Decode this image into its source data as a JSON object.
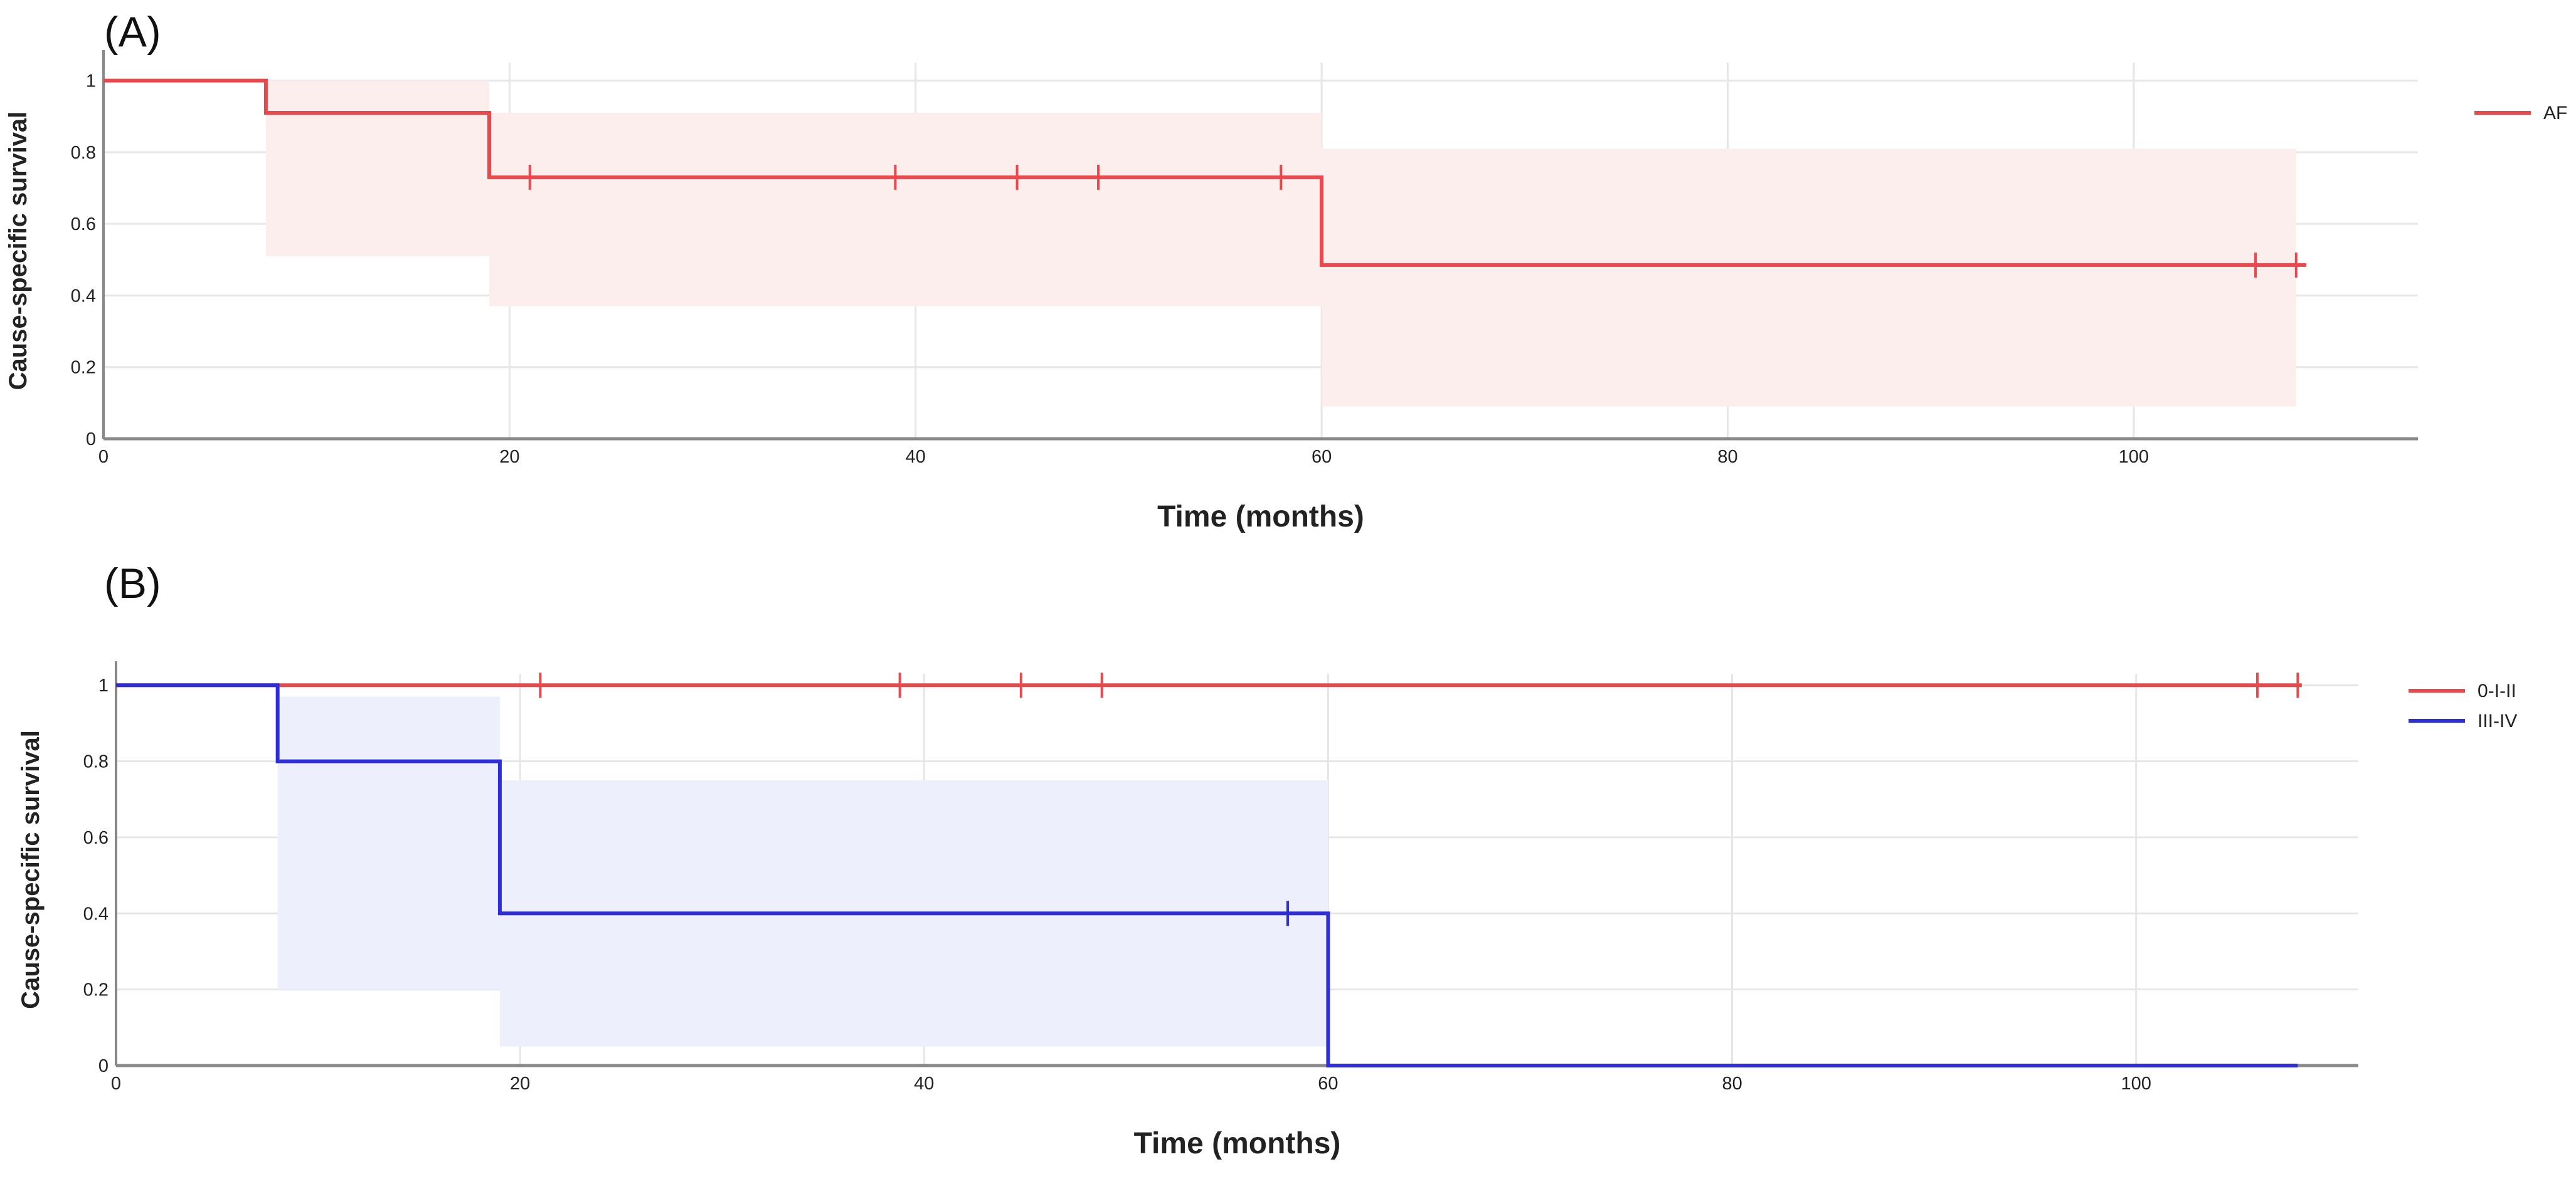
{
  "figure": {
    "panels": [
      {
        "label": "(A)"
      },
      {
        "label": "(B)"
      }
    ]
  },
  "chart_data": [
    {
      "type": "line",
      "subtype": "kaplan-meier",
      "panel": "(A)",
      "xlabel": "Time (months)",
      "ylabel": "Cause-specific survival",
      "xlim": [
        0,
        114
      ],
      "ylim": [
        0,
        1.05
      ],
      "xticks": [
        0,
        20,
        40,
        60,
        80,
        100
      ],
      "yticks": [
        0,
        0.2,
        0.4,
        0.6,
        0.8,
        1
      ],
      "yticklabels": [
        "0",
        "0.2",
        "0.4",
        "0.6",
        "0.8",
        "1"
      ],
      "grid": true,
      "legend_position": "top-right",
      "series": [
        {
          "name": "AF",
          "color": "#e8494d",
          "ci_color": "#fdeeee",
          "steps": [
            {
              "x": 0,
              "y": 1.0
            },
            {
              "x": 8,
              "y": 0.91
            },
            {
              "x": 19,
              "y": 0.73
            },
            {
              "x": 60,
              "y": 0.485
            }
          ],
          "end_x": 108.5,
          "censored": [
            {
              "x": 21,
              "y": 0.73
            },
            {
              "x": 39,
              "y": 0.73
            },
            {
              "x": 45,
              "y": 0.73
            },
            {
              "x": 49,
              "y": 0.73
            },
            {
              "x": 58,
              "y": 0.73
            },
            {
              "x": 106,
              "y": 0.485
            },
            {
              "x": 108,
              "y": 0.485
            }
          ],
          "ci": [
            {
              "x0": 8,
              "x1": 19,
              "lo": 0.51,
              "hi": 1.0
            },
            {
              "x0": 19,
              "x1": 60,
              "lo": 0.37,
              "hi": 0.91
            },
            {
              "x0": 60,
              "x1": 108,
              "lo": 0.09,
              "hi": 0.81
            }
          ]
        }
      ]
    },
    {
      "type": "line",
      "subtype": "kaplan-meier",
      "panel": "(B)",
      "xlabel": "Time (months)",
      "ylabel": "Cause-specific survival",
      "xlim": [
        0,
        111
      ],
      "ylim": [
        0,
        1.03
      ],
      "xticks": [
        0,
        20,
        40,
        60,
        80,
        100
      ],
      "yticks": [
        0,
        0.2,
        0.4,
        0.6,
        0.8,
        1
      ],
      "yticklabels": [
        "0",
        "0.2",
        "0.4",
        "0.6",
        "0.8",
        "1"
      ],
      "grid": true,
      "legend_position": "top-right",
      "series": [
        {
          "name": "0-I-II",
          "color": "#e8494d",
          "ci_color": null,
          "steps": [
            {
              "x": 0,
              "y": 1.0
            }
          ],
          "end_x": 108.2,
          "censored": [
            {
              "x": 21,
              "y": 1.0
            },
            {
              "x": 38.8,
              "y": 1.0
            },
            {
              "x": 44.8,
              "y": 1.0
            },
            {
              "x": 48.8,
              "y": 1.0
            },
            {
              "x": 106,
              "y": 1.0
            },
            {
              "x": 108,
              "y": 1.0
            }
          ],
          "ci": []
        },
        {
          "name": "III-IV",
          "color": "#2e2ed8",
          "ci_color": "#eeeffd",
          "steps": [
            {
              "x": 0,
              "y": 1.0
            },
            {
              "x": 8,
              "y": 0.8
            },
            {
              "x": 19,
              "y": 0.4
            },
            {
              "x": 60,
              "y": 0.0
            }
          ],
          "end_x": 108,
          "censored": [
            {
              "x": 58,
              "y": 0.4
            }
          ],
          "ci": [
            {
              "x0": 8,
              "x1": 19,
              "lo": 0.2,
              "hi": 0.97
            },
            {
              "x0": 19,
              "x1": 60,
              "lo": 0.05,
              "hi": 0.75
            }
          ]
        }
      ]
    }
  ]
}
